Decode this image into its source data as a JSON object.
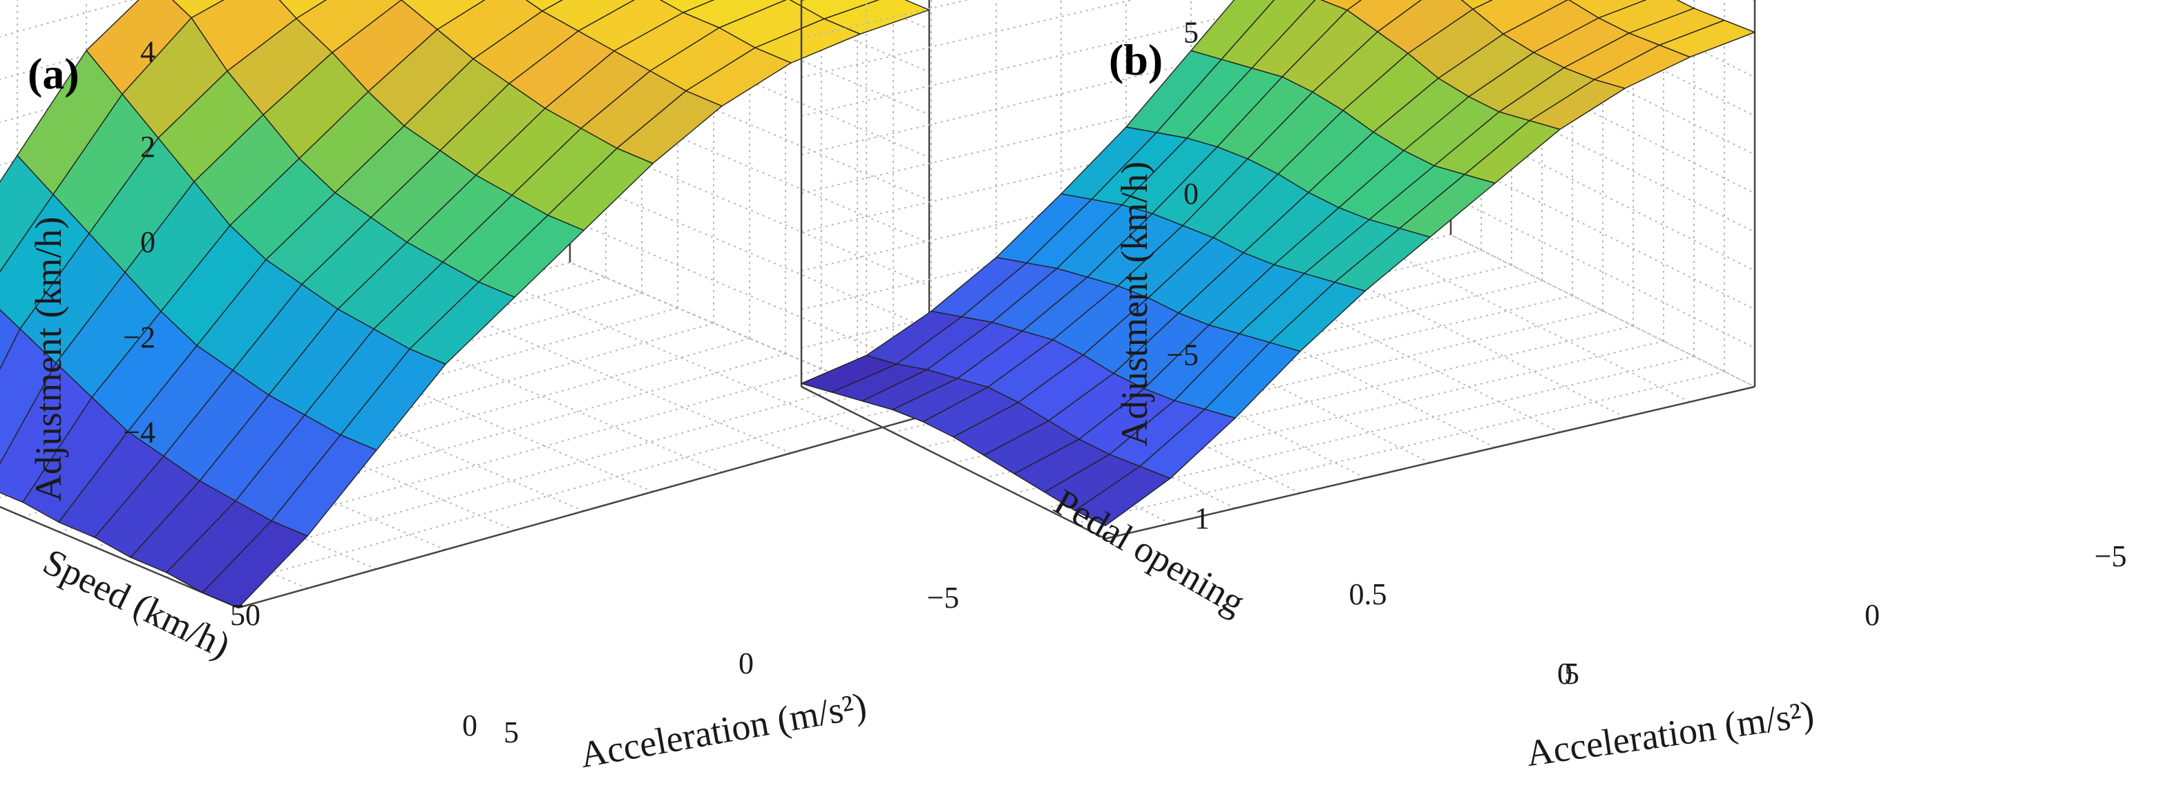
{
  "chart_data": [
    {
      "type": "surface",
      "panel_label": "(a)",
      "title": "",
      "xlabel": "Acceleration (m/s²)",
      "ylabel": "Speed (km/h)",
      "zlabel": "Adjustment (km/h)",
      "xlim": [
        5,
        -5
      ],
      "ylim": [
        0,
        100
      ],
      "zlim": [
        -4.5,
        4.5
      ],
      "xticks": [
        "5",
        "0",
        "−5"
      ],
      "yticks": [
        "0",
        "50"
      ],
      "zticks": [
        "−4",
        "−2",
        "0",
        "2",
        "4"
      ],
      "grid": true,
      "colormap": "parula",
      "x": [
        5,
        4,
        3,
        2,
        1,
        0,
        -1,
        -2,
        -3,
        -4,
        -5
      ],
      "y": [
        0,
        10,
        20,
        30,
        40,
        50,
        60,
        70,
        80,
        90,
        100
      ],
      "z": [
        [
          -4.5,
          -3.4,
          -2.0,
          -0.6,
          0.4,
          1.4,
          2.4,
          3.2,
          3.7,
          3.9,
          4.0
        ],
        [
          -4.5,
          -3.4,
          -2.0,
          -0.6,
          0.4,
          1.4,
          2.4,
          3.2,
          3.7,
          3.9,
          4.0
        ],
        [
          -4.4,
          -3.3,
          -1.9,
          -0.5,
          0.5,
          1.5,
          2.5,
          3.3,
          3.8,
          4.0,
          4.0
        ],
        [
          -4.4,
          -3.2,
          -1.8,
          -0.4,
          0.6,
          1.6,
          2.6,
          3.4,
          3.8,
          4.0,
          4.0
        ],
        [
          -4.3,
          -3.0,
          -1.6,
          -0.2,
          0.8,
          1.8,
          2.8,
          3.5,
          3.9,
          4.1,
          4.1
        ],
        [
          -4.3,
          -2.8,
          -1.4,
          0.0,
          1.0,
          2.0,
          3.0,
          3.6,
          4.0,
          4.2,
          4.2
        ],
        [
          -4.2,
          -2.4,
          -1.0,
          0.4,
          1.4,
          2.4,
          3.3,
          3.8,
          4.1,
          4.3,
          4.3
        ],
        [
          -4.2,
          -2.0,
          -0.5,
          1.0,
          2.0,
          2.9,
          3.6,
          4.0,
          4.2,
          4.4,
          4.4
        ],
        [
          -4.1,
          -1.6,
          0.0,
          1.6,
          2.6,
          3.3,
          3.8,
          4.1,
          4.3,
          4.4,
          4.5
        ],
        [
          -4.0,
          -1.2,
          0.5,
          2.2,
          3.4,
          3.8,
          4.0,
          4.2,
          4.4,
          4.5,
          4.5
        ],
        [
          -4.0,
          -0.8,
          1.0,
          2.8,
          3.8,
          4.0,
          4.2,
          4.3,
          4.4,
          4.5,
          4.5
        ]
      ]
    },
    {
      "type": "surface",
      "panel_label": "(b)",
      "title": "",
      "xlabel": "Acceleration (m/s²)",
      "ylabel": "Pedal opening",
      "zlabel": "Adjustment (km/h)",
      "xlim": [
        5,
        -5
      ],
      "ylim": [
        0,
        1
      ],
      "zlim": [
        -6,
        6
      ],
      "xticks": [
        "5",
        "0",
        "−5"
      ],
      "yticks": [
        "0",
        "0.5",
        "1"
      ],
      "zticks": [
        "−5",
        "0",
        "5"
      ],
      "grid": true,
      "colormap": "parula",
      "x": [
        5,
        4,
        3,
        2,
        1,
        0,
        -1,
        -2,
        -3,
        -4,
        -5
      ],
      "y": [
        0,
        0.1,
        0.2,
        0.3,
        0.4,
        0.5,
        0.6,
        0.7,
        0.8,
        0.9,
        1.0
      ],
      "z": [
        [
          -5.6,
          -4.6,
          -3.2,
          -1.6,
          -0.2,
          1.0,
          2.2,
          3.4,
          4.2,
          4.7,
          5.0
        ],
        [
          -5.6,
          -4.7,
          -3.4,
          -1.8,
          -0.4,
          0.8,
          2.0,
          3.2,
          4.0,
          4.6,
          4.9
        ],
        [
          -5.5,
          -4.8,
          -3.6,
          -2.0,
          -0.6,
          0.6,
          1.8,
          3.0,
          3.9,
          4.5,
          4.8
        ],
        [
          -5.4,
          -4.8,
          -3.7,
          -2.2,
          -0.8,
          0.5,
          1.8,
          3.0,
          3.9,
          4.5,
          4.8
        ],
        [
          -5.3,
          -4.7,
          -3.7,
          -2.3,
          -0.9,
          0.5,
          1.9,
          3.1,
          4.0,
          4.6,
          4.9
        ],
        [
          -5.2,
          -4.6,
          -3.6,
          -2.3,
          -0.9,
          0.6,
          2.1,
          3.4,
          4.3,
          4.8,
          5.0
        ],
        [
          -5.2,
          -4.6,
          -3.6,
          -2.4,
          -1.0,
          0.6,
          2.2,
          3.6,
          4.6,
          5.1,
          5.3
        ],
        [
          -5.3,
          -4.8,
          -3.8,
          -2.6,
          -1.1,
          0.5,
          2.2,
          3.8,
          4.8,
          5.3,
          5.5
        ],
        [
          -5.5,
          -5.0,
          -4.0,
          -2.8,
          -1.3,
          0.3,
          2.0,
          3.7,
          4.9,
          5.5,
          5.7
        ],
        [
          -5.7,
          -5.3,
          -4.3,
          -3.1,
          -1.6,
          0.0,
          1.8,
          3.6,
          4.9,
          5.6,
          5.8
        ],
        [
          -5.9,
          -5.5,
          -4.6,
          -3.4,
          -1.9,
          -0.3,
          1.6,
          3.5,
          4.9,
          5.6,
          5.9
        ]
      ]
    }
  ]
}
